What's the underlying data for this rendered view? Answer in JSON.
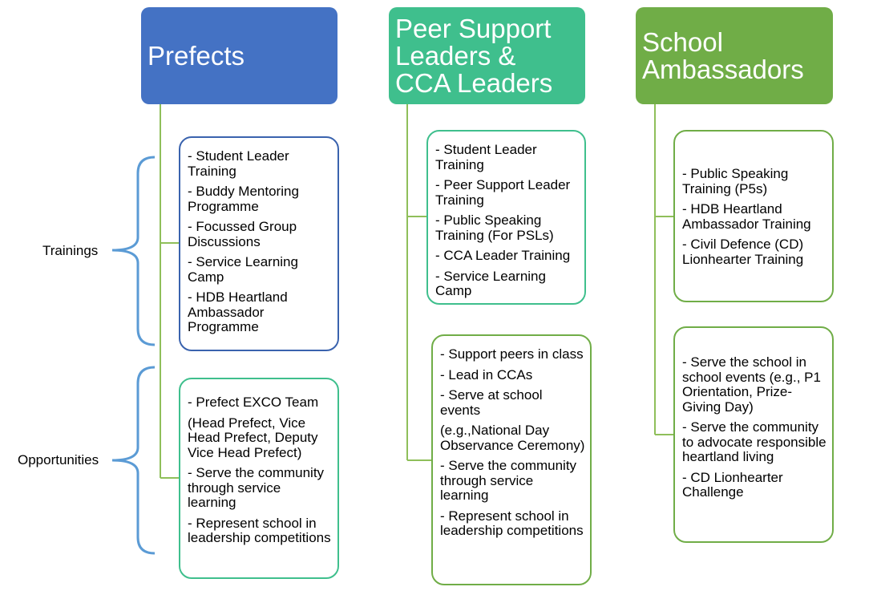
{
  "columns": [
    {
      "title": "Prefects",
      "color": "#4472c4",
      "trainings": [
        "- Student Leader Training",
        "- Buddy Mentoring Programme",
        "- Focussed Group Discussions",
        "- Service Learning Camp",
        "- HDB Heartland Ambassador Programme"
      ],
      "opportunities": [
        "- Prefect EXCO Team",
        "(Head Prefect, Vice Head Prefect, Deputy Vice Head Prefect)",
        "-  Serve the community through service learning",
        "- Represent school in leadership competitions"
      ]
    },
    {
      "title": "Peer Support\nLeaders &\nCCA Leaders",
      "color": "#3fbf8d",
      "trainings": [
        "- Student Leader Training",
        "- Peer Support Leader Training",
        "- Public Speaking Training (For PSLs)",
        "- CCA Leader Training",
        "- Service Learning Camp"
      ],
      "opportunities": [
        "- Support peers in class",
        "- Lead in CCAs",
        "- Serve at school events",
        "(e.g.,National Day Observance Ceremony)",
        "- Serve the community through service learning",
        "- Represent school in leadership competitions"
      ]
    },
    {
      "title": "School\nAmbassadors",
      "color": "#70ad47",
      "trainings": [
        "- Public Speaking Training (P5s)",
        "- HDB Heartland Ambassador Training",
        "- Civil Defence (CD) Lionhearter Training"
      ],
      "opportunities": [
        "- Serve the school in school events (e.g., P1 Orientation, Prize-Giving Day)",
        "- Serve the community to advocate responsible heartland living",
        "- CD Lionhearter Challenge"
      ]
    }
  ],
  "labels": {
    "trainings": "Trainings",
    "opportunities": "Opportunities"
  }
}
